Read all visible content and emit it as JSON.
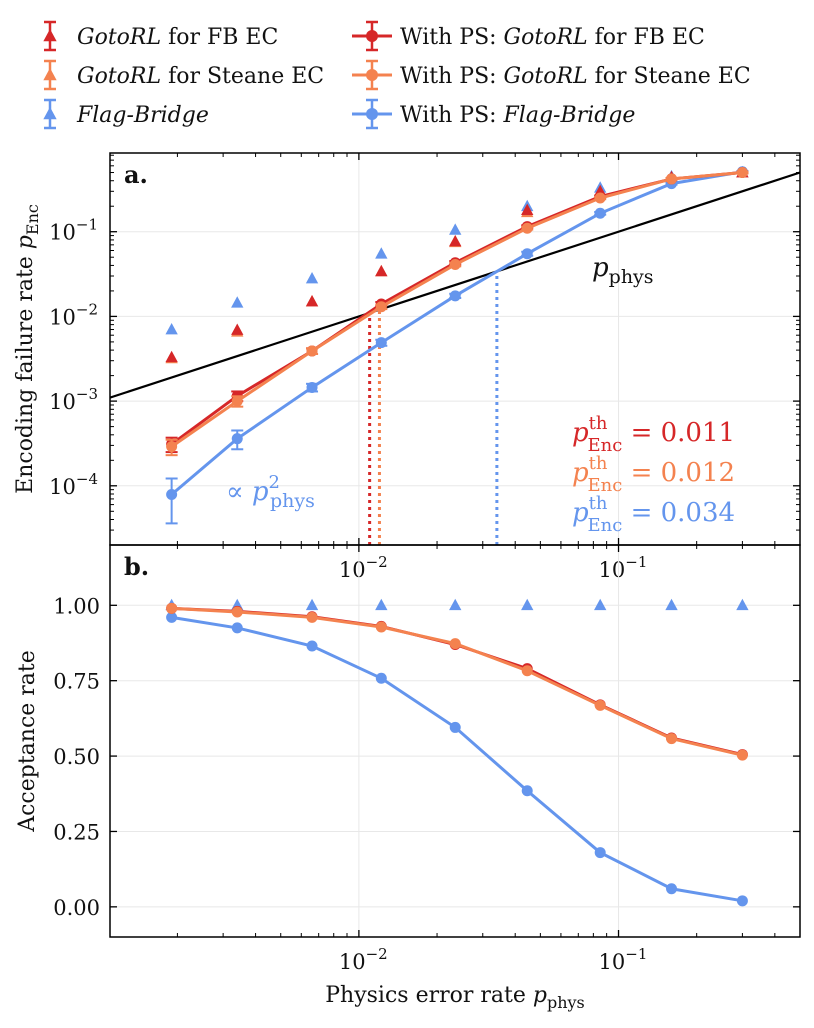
{
  "colors": {
    "fb_ec": "#d62728",
    "steane_ec": "#f4824f",
    "flag_bridge": "#6495ed",
    "black": "#000000",
    "grid": "#e8e8e8"
  },
  "legend": {
    "items": [
      {
        "key": "gotorl_fb",
        "label_em": "GotoRL",
        "label_rest": " for FB EC",
        "marker": "triangle",
        "color": "#d62728",
        "line": false
      },
      {
        "key": "gotorl_steane",
        "label_em": "GotoRL",
        "label_rest": " for Steane EC",
        "marker": "triangle",
        "color": "#f4824f",
        "line": false
      },
      {
        "key": "flag_bridge",
        "label_em": "Flag-Bridge",
        "label_rest": "",
        "marker": "triangle",
        "color": "#6495ed",
        "line": false
      },
      {
        "key": "ps_gotorl_fb",
        "label_pre": "With PS: ",
        "label_em": "GotoRL",
        "label_rest": " for FB EC",
        "marker": "circle",
        "color": "#d62728",
        "line": true
      },
      {
        "key": "ps_gotorl_steane",
        "label_pre": "With PS: ",
        "label_em": "GotoRL",
        "label_rest": " for Steane EC",
        "marker": "circle",
        "color": "#f4824f",
        "line": true
      },
      {
        "key": "ps_flag_bridge",
        "label_pre": "With PS: ",
        "label_em": "Flag-Bridge",
        "label_rest": "",
        "marker": "circle",
        "color": "#6495ed",
        "line": true
      }
    ]
  },
  "panel_a": {
    "letter": "a.",
    "ylabel_text": "Encoding failure rate ",
    "ylabel_sym": "p",
    "ylabel_sub": "Enc",
    "phys_label": "p",
    "phys_label_sub": "phys",
    "quad_label_prefix": "∝ ",
    "quad_label": "p",
    "quad_label_sub": "phys",
    "quad_label_sup": "2",
    "thresholds": [
      {
        "sym": "p",
        "sup": "th",
        "sub": "Enc",
        "eq": " = 0.011",
        "value": 0.011,
        "color": "#d62728"
      },
      {
        "sym": "p",
        "sup": "th",
        "sub": "Enc",
        "eq": " = 0.012",
        "value": 0.012,
        "color": "#f4824f"
      },
      {
        "sym": "p",
        "sup": "th",
        "sub": "Enc",
        "eq": " = 0.034",
        "value": 0.034,
        "color": "#6495ed"
      }
    ]
  },
  "panel_b": {
    "letter": "b.",
    "ylabel": "Acceptance rate"
  },
  "xlabel_text": "Physics error rate ",
  "xlabel_sym": "p",
  "xlabel_sub": "phys",
  "chart_data": [
    {
      "type": "line",
      "panel": "a",
      "xscale": "log",
      "yscale": "log",
      "xlim": [
        0.0011,
        0.5
      ],
      "ylim": [
        2e-05,
        0.85
      ],
      "grid": true,
      "legend_position": "top (outside)",
      "x_ticks": [
        0.01,
        0.1
      ],
      "x_tick_labels": [
        {
          "base": "10",
          "exp": "−2"
        },
        {
          "base": "10",
          "exp": "−1"
        }
      ],
      "y_ticks": [
        0.0001,
        0.001,
        0.01,
        0.1
      ],
      "y_tick_labels": [
        {
          "base": "10",
          "exp": "−4"
        },
        {
          "base": "10",
          "exp": "−3"
        },
        {
          "base": "10",
          "exp": "−2"
        },
        {
          "base": "10",
          "exp": "−1"
        }
      ],
      "x": [
        0.0019,
        0.0034,
        0.0066,
        0.0122,
        0.0235,
        0.0445,
        0.085,
        0.16,
        0.3
      ],
      "series": [
        {
          "key": "gotorl_fb",
          "marker": "triangle",
          "color": "#d62728",
          "line": false,
          "values": [
            0.0033,
            0.0069,
            0.015,
            0.034,
            0.077,
            0.18,
            0.3,
            0.44,
            0.5
          ]
        },
        {
          "key": "gotorl_steane",
          "marker": "triangle",
          "color": "#f4824f",
          "line": false,
          "values": [
            0.0032,
            0.0066,
            0.015,
            0.034,
            0.075,
            0.17,
            0.29,
            0.43,
            0.5
          ]
        },
        {
          "key": "flag_bridge",
          "marker": "triangle",
          "color": "#6495ed",
          "line": false,
          "values": [
            0.007,
            0.0145,
            0.028,
            0.055,
            0.105,
            0.2,
            0.33,
            0.45,
            0.5
          ]
        },
        {
          "key": "ps_gotorl_fb",
          "marker": "circle",
          "color": "#d62728",
          "line": true,
          "values": [
            0.00031,
            0.00115,
            0.0039,
            0.014,
            0.043,
            0.115,
            0.26,
            0.42,
            0.5
          ],
          "err": [
            6e-05,
            0.00015,
            0.0003,
            0.0008,
            0.002,
            0.004,
            0.008,
            0.01,
            0.01
          ]
        },
        {
          "key": "ps_gotorl_steane",
          "marker": "circle",
          "color": "#f4824f",
          "line": true,
          "values": [
            0.00029,
            0.001,
            0.0039,
            0.013,
            0.041,
            0.11,
            0.25,
            0.42,
            0.5
          ],
          "err": [
            6e-05,
            0.00014,
            0.0003,
            0.0008,
            0.002,
            0.004,
            0.008,
            0.01,
            0.01
          ]
        },
        {
          "key": "ps_flag_bridge",
          "marker": "circle",
          "color": "#6495ed",
          "line": true,
          "values": [
            7.9e-05,
            0.00036,
            0.00145,
            0.0049,
            0.0175,
            0.055,
            0.165,
            0.37,
            0.51
          ],
          "err": [
            4.3e-05,
            9e-05,
            0.00015,
            0.0004,
            0.001,
            0.003,
            0.006,
            0.01,
            0.01
          ]
        }
      ],
      "reference_line": {
        "label": "p_phys",
        "y_equals_x": true,
        "color": "#000000"
      },
      "threshold_markers": [
        0.011,
        0.012,
        0.034
      ]
    },
    {
      "type": "line",
      "panel": "b",
      "xscale": "log",
      "xlim": [
        0.0011,
        0.5
      ],
      "ylim": [
        -0.1,
        1.2
      ],
      "grid": true,
      "x_ticks": [
        0.01,
        0.1
      ],
      "x_tick_labels": [
        {
          "base": "10",
          "exp": "−2"
        },
        {
          "base": "10",
          "exp": "−1"
        }
      ],
      "y_ticks": [
        0.0,
        0.25,
        0.5,
        0.75,
        1.0
      ],
      "y_tick_labels": [
        "0.00",
        "0.25",
        "0.50",
        "0.75",
        "1.00"
      ],
      "x": [
        0.0019,
        0.0034,
        0.0066,
        0.0122,
        0.0235,
        0.0445,
        0.085,
        0.16,
        0.3
      ],
      "series": [
        {
          "key": "flag_bridge",
          "marker": "triangle",
          "color": "#6495ed",
          "line": false,
          "values": [
            1.0,
            1.0,
            1.0,
            1.0,
            1.0,
            1.0,
            1.0,
            1.0,
            1.0
          ]
        },
        {
          "key": "ps_gotorl_fb",
          "marker": "circle",
          "color": "#d62728",
          "line": true,
          "values": [
            0.99,
            0.98,
            0.962,
            0.93,
            0.87,
            0.79,
            0.67,
            0.56,
            0.505
          ]
        },
        {
          "key": "ps_gotorl_steane",
          "marker": "circle",
          "color": "#f4824f",
          "line": true,
          "values": [
            0.99,
            0.978,
            0.96,
            0.928,
            0.873,
            0.783,
            0.668,
            0.558,
            0.503
          ]
        },
        {
          "key": "ps_flag_bridge",
          "marker": "circle",
          "color": "#6495ed",
          "line": true,
          "values": [
            0.96,
            0.925,
            0.865,
            0.758,
            0.595,
            0.385,
            0.18,
            0.06,
            0.02
          ]
        }
      ]
    }
  ]
}
